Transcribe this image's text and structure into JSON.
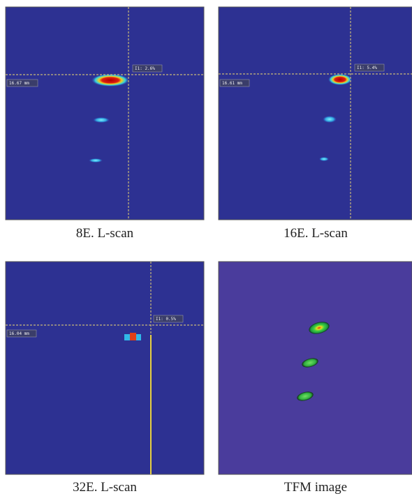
{
  "panels": [
    {
      "caption": "8E. L-scan",
      "cursor_label": "I1: 2.6%",
      "depth_label": "16.67 mm"
    },
    {
      "caption": "16E. L-scan",
      "cursor_label": "I1: 5.4%",
      "depth_label": "16.61 mm"
    },
    {
      "caption": "32E. L-scan",
      "cursor_label": "I1: 0.5%",
      "depth_label": "16.04 mm"
    },
    {
      "caption": "TFM image"
    }
  ]
}
